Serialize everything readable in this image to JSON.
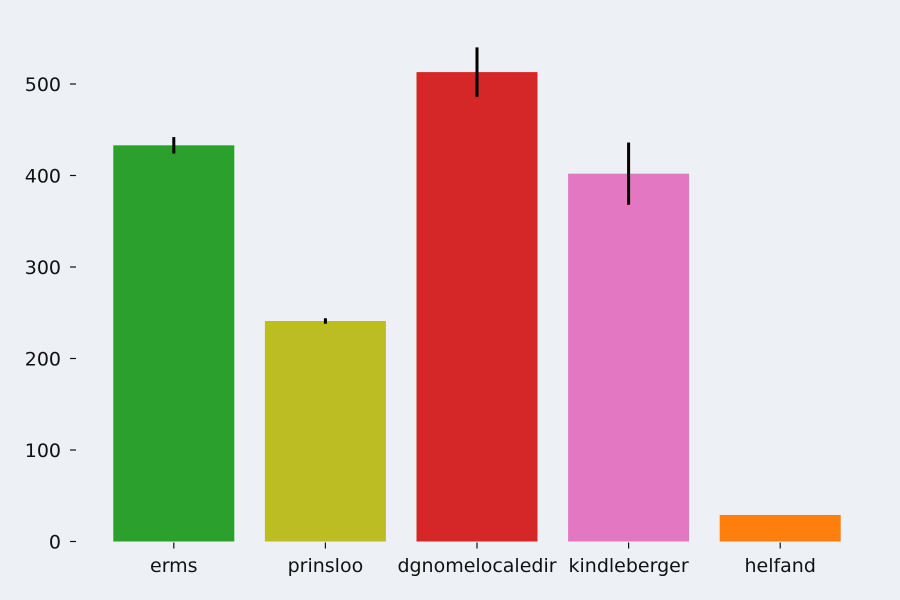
{
  "chart_data": {
    "type": "bar",
    "categories": [
      "erms",
      "prinsloo",
      "dgnomelocaledir",
      "kindleberger",
      "helfand"
    ],
    "values": [
      433,
      241,
      513,
      402,
      29
    ],
    "errors": [
      9,
      3,
      27,
      34,
      0
    ],
    "colors": [
      "#2ca02c",
      "#bcbd22",
      "#d62728",
      "#e377c2",
      "#ff7f0e"
    ],
    "ylim": [
      0,
      560
    ],
    "yticks": [
      0,
      100,
      200,
      300,
      400,
      500
    ],
    "ytick_labels": [
      "0",
      "100",
      "200",
      "300",
      "400",
      "500"
    ],
    "title": "",
    "xlabel": "",
    "ylabel": "",
    "grid": false,
    "background": "#edf0f5",
    "error_bar_color": "#000000"
  }
}
